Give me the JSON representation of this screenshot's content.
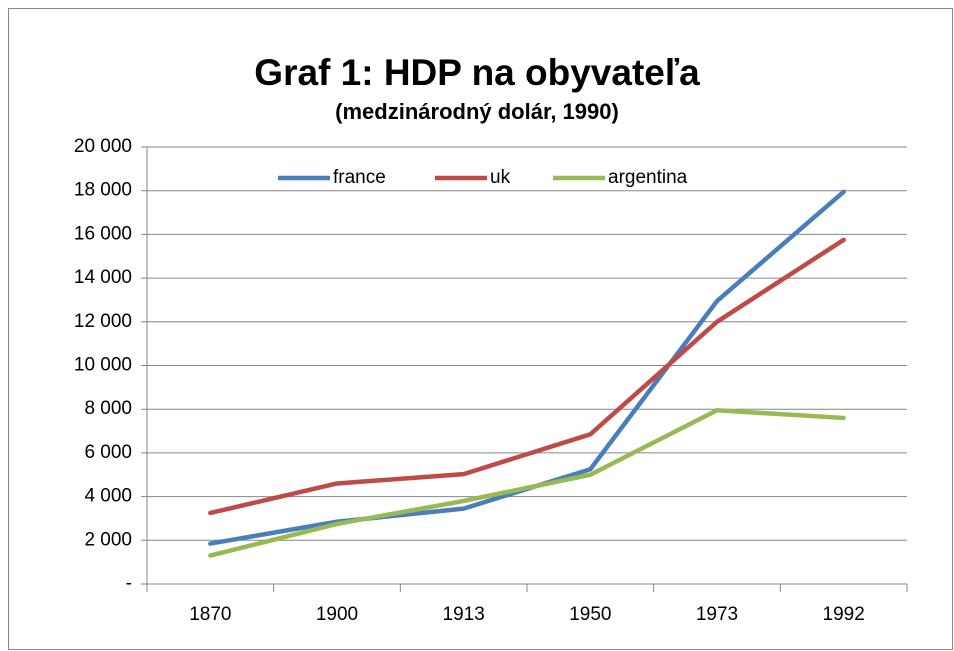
{
  "chart_data": {
    "type": "line",
    "title": "Graf 1: HDP na obyvateľa",
    "subtitle": "(medzinárodný dolár, 1990)",
    "categories": [
      "1870",
      "1900",
      "1913",
      "1950",
      "1973",
      "1992"
    ],
    "series": [
      {
        "name": "france",
        "color": "#4a7ebb",
        "values": [
          1850,
          2850,
          3450,
          5250,
          12950,
          17950
        ]
      },
      {
        "name": "uk",
        "color": "#be4b48",
        "values": [
          3250,
          4600,
          5030,
          6850,
          12000,
          15750
        ]
      },
      {
        "name": "argentina",
        "color": "#98b954",
        "values": [
          1300,
          2750,
          3800,
          5000,
          7950,
          7600
        ]
      }
    ],
    "ylim": [
      0,
      20000
    ],
    "yticks": [
      {
        "value": 0,
        "label": "-"
      },
      {
        "value": 2000,
        "label": "2 000"
      },
      {
        "value": 4000,
        "label": "4 000"
      },
      {
        "value": 6000,
        "label": "6 000"
      },
      {
        "value": 8000,
        "label": "8 000"
      },
      {
        "value": 10000,
        "label": "10 000"
      },
      {
        "value": 12000,
        "label": "12 000"
      },
      {
        "value": 14000,
        "label": "14 000"
      },
      {
        "value": 16000,
        "label": "16 000"
      },
      {
        "value": 18000,
        "label": "18 000"
      },
      {
        "value": 20000,
        "label": "20 000"
      }
    ],
    "grid": true,
    "legend": "top"
  }
}
